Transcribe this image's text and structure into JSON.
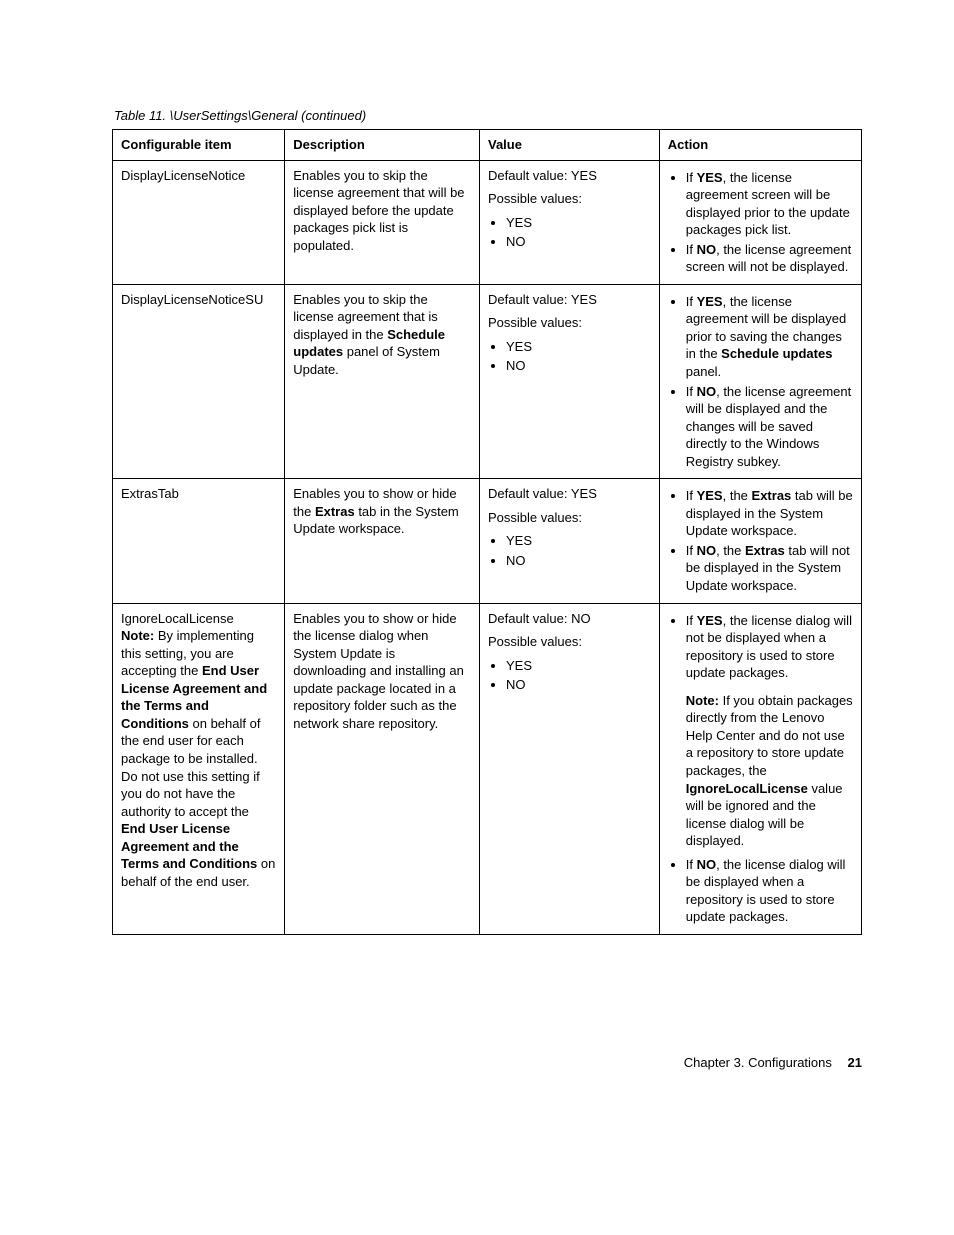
{
  "caption": "Table 11. \\UserSettings\\General (continued)",
  "headers": {
    "c1": "Configurable item",
    "c2": "Description",
    "c3": "Value",
    "c4": "Action"
  },
  "rows": [
    {
      "item_html": "DisplayLicenseNotice",
      "desc_html": "Enables you to skip the license agreement that will be displayed before the update packages pick list is populated.",
      "value": {
        "default_label": "Default value: YES",
        "possible_label": "Possible values:",
        "options": [
          "YES",
          "NO"
        ]
      },
      "actions": [
        "If <b>YES</b>, the license agreement screen will be displayed prior to the update packages pick list.",
        "If <b>NO</b>, the license agreement screen will not be displayed."
      ]
    },
    {
      "item_html": "DisplayLicenseNoticeSU",
      "desc_html": "Enables you to skip the license agreement that is displayed in the <b>Schedule updates</b> panel of System Update.",
      "value": {
        "default_label": "Default value: YES",
        "possible_label": "Possible values:",
        "options": [
          "YES",
          "NO"
        ]
      },
      "actions": [
        "If <b>YES</b>, the license agreement will be displayed prior to saving the changes in the <b>Schedule updates</b> panel.",
        "If <b>NO</b>, the license agreement will be displayed and the changes will be saved directly to the Windows Registry subkey."
      ]
    },
    {
      "item_html": "ExtrasTab",
      "desc_html": "Enables you to show or hide the <b>Extras</b> tab in the System Update workspace.",
      "value": {
        "default_label": "Default value: YES",
        "possible_label": "Possible values:",
        "options": [
          "YES",
          "NO"
        ]
      },
      "actions": [
        "If <b>YES</b>, the <b>Extras</b> tab will be displayed in the System Update workspace.",
        "If <b>NO</b>, the <b>Extras</b> tab will not be displayed in the System Update workspace."
      ]
    },
    {
      "item_html": "IgnoreLocalLicense<br><b>Note:</b> By implementing this setting, you are accepting the <b>End User License Agreement and the Terms and Conditions</b> on behalf of the end user for each package to be installed. Do not use this setting if you do not have the authority to accept the <b>End User License Agreement and the Terms and Conditions</b> on behalf of the end user.",
      "desc_html": "Enables you to show or hide the license dialog when System Update is downloading and installing an update package located in a repository folder such as the network share repository.",
      "value": {
        "default_label": "Default value: NO",
        "possible_label": "Possible values:",
        "options": [
          "YES",
          "NO"
        ]
      },
      "actions": [
        "If <b>YES</b>, the license dialog will not be displayed when a repository is used to store update packages.<p style='margin-top:10px'><b>Note:</b> If you obtain packages directly from the Lenovo Help Center and do not use a repository to store update packages, the <b>IgnoreLocalLicense</b> value will be ignored and the license dialog will be displayed.</p>",
        "If <b>NO</b>, the license dialog will be displayed when a repository is used to store update packages."
      ]
    }
  ],
  "footer": {
    "chapter": "Chapter 3. Configurations",
    "page": "21"
  }
}
